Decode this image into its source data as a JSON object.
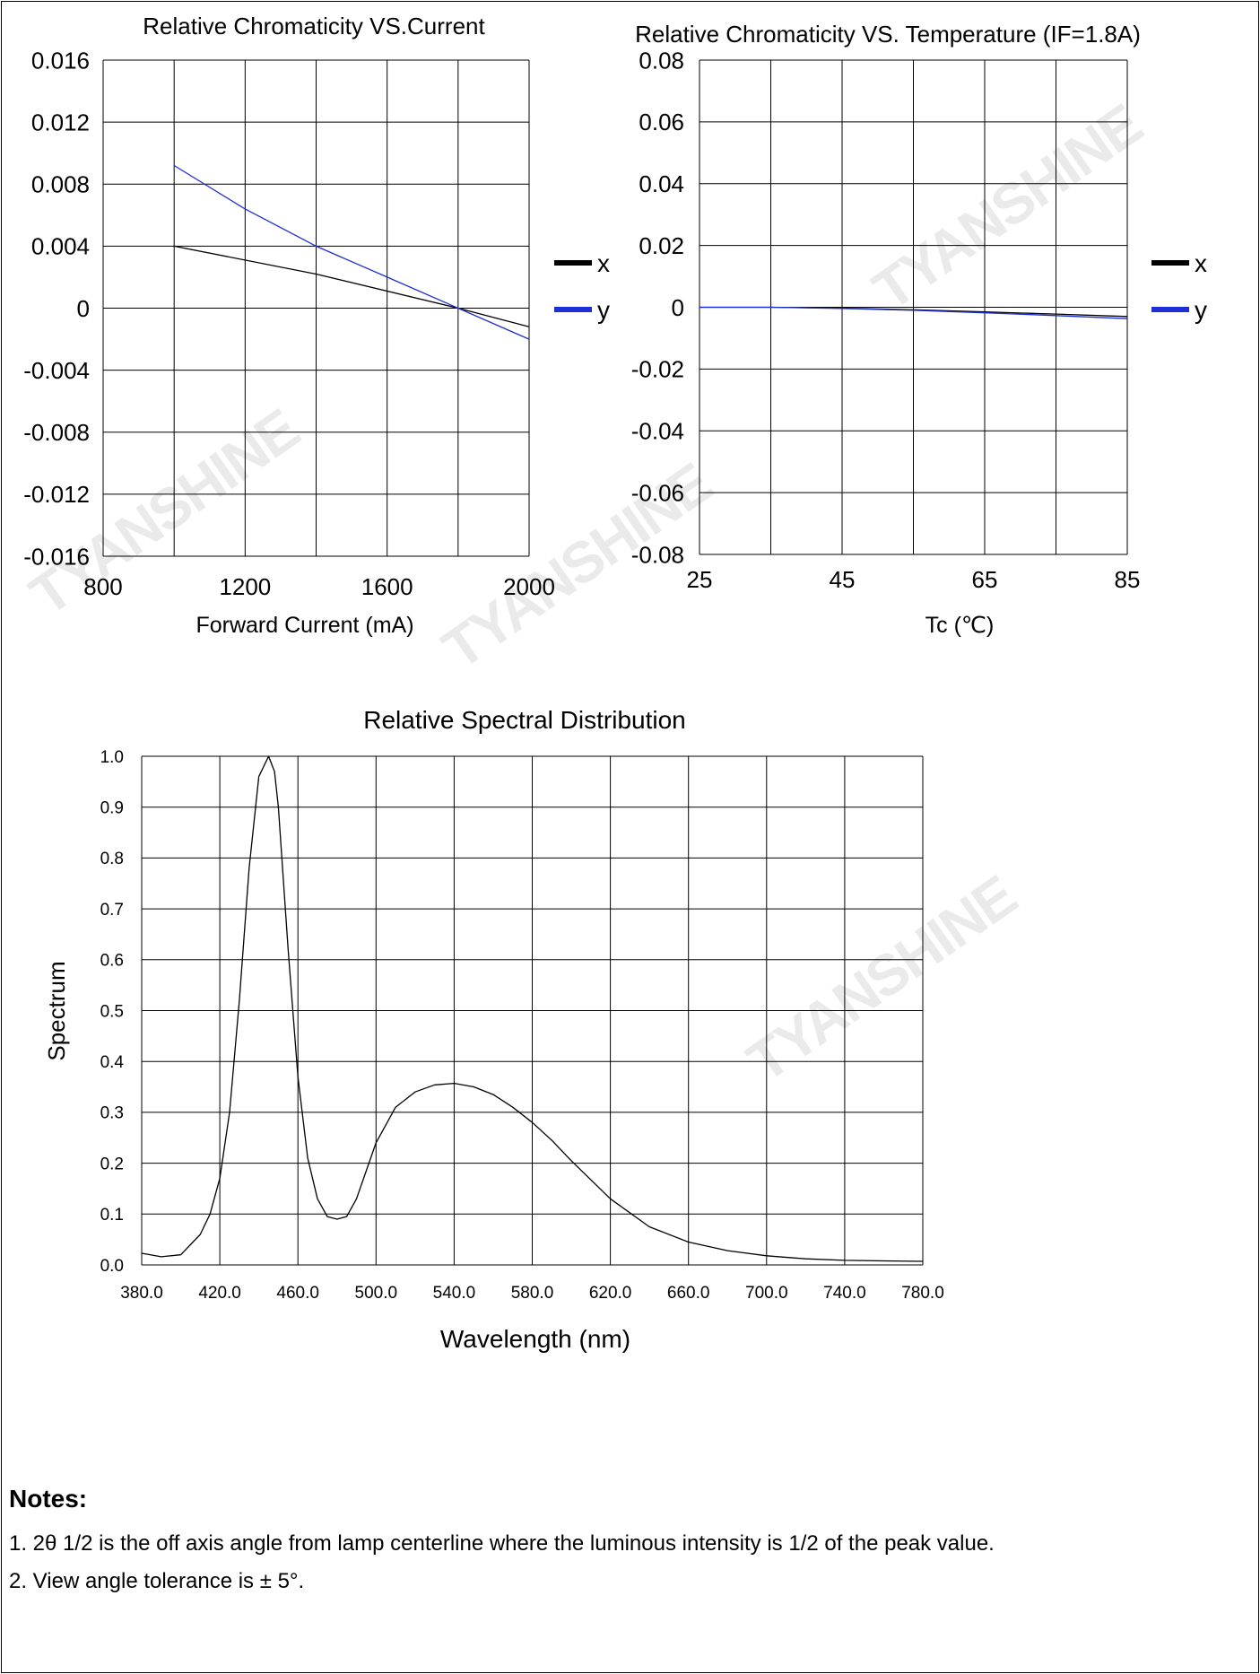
{
  "watermark": "TYANSHINE",
  "chart_data": [
    {
      "type": "line",
      "title": "Relative Chromaticity VS.Current",
      "xlabel": "Forward Current (mA)",
      "ylabel": "",
      "xlim": [
        800,
        2000
      ],
      "ylim": [
        -0.016,
        0.016
      ],
      "x_ticks": [
        "800",
        "1200",
        "1600",
        "2000"
      ],
      "y_ticks": [
        "0.016",
        "0.012",
        "0.008",
        "0.004",
        "0",
        "-0.004",
        "-0.008",
        "-0.012",
        "-0.016"
      ],
      "grid": true,
      "legend_position": "right",
      "series": [
        {
          "name": "x",
          "color": "#000000",
          "x": [
            1000,
            1400,
            1800,
            2000
          ],
          "y": [
            0.004,
            0.0022,
            0.0,
            -0.0012
          ]
        },
        {
          "name": "y",
          "color": "#1f2fd6",
          "x": [
            1000,
            1200,
            1400,
            1600,
            1800,
            2000
          ],
          "y": [
            0.0092,
            0.0064,
            0.004,
            0.002,
            0.0,
            -0.002
          ]
        }
      ]
    },
    {
      "type": "line",
      "title": "Relative Chromaticity VS. Temperature (IF=1.8A)",
      "xlabel": "Tc (℃)",
      "ylabel": "",
      "xlim": [
        25,
        85
      ],
      "ylim": [
        -0.08,
        0.08
      ],
      "x_ticks": [
        "25",
        "45",
        "65",
        "85"
      ],
      "y_ticks": [
        "0.08",
        "0.06",
        "0.04",
        "0.02",
        "0",
        "-0.02",
        "-0.04",
        "-0.06",
        "-0.08"
      ],
      "grid": true,
      "legend_position": "right",
      "series": [
        {
          "name": "x",
          "color": "#000000",
          "x": [
            25,
            35,
            45,
            55,
            65,
            75,
            85
          ],
          "y": [
            0.0,
            0.0,
            -0.0003,
            -0.0008,
            -0.0015,
            -0.0022,
            -0.003
          ]
        },
        {
          "name": "y",
          "color": "#1f2fd6",
          "x": [
            25,
            35,
            45,
            55,
            65,
            75,
            85
          ],
          "y": [
            0.0,
            0.0,
            -0.0004,
            -0.001,
            -0.0018,
            -0.0027,
            -0.0037
          ]
        }
      ]
    },
    {
      "type": "line",
      "title": "Relative Spectral Distribution",
      "xlabel": "Wavelength (nm)",
      "ylabel": "Spectrum",
      "xlim": [
        380,
        780
      ],
      "ylim": [
        0,
        1.0
      ],
      "x_ticks": [
        "380.0",
        "420.0",
        "460.0",
        "500.0",
        "540.0",
        "580.0",
        "620.0",
        "660.0",
        "700.0",
        "740.0",
        "780.0"
      ],
      "y_ticks": [
        "1.0",
        "0.9",
        "0.8",
        "0.7",
        "0.6",
        "0.5",
        "0.4",
        "0.3",
        "0.2",
        "0.1",
        "0.0"
      ],
      "grid": true,
      "series": [
        {
          "name": "",
          "color": "#000000",
          "x": [
            380,
            390,
            400,
            410,
            415,
            420,
            425,
            430,
            435,
            440,
            445,
            448,
            450,
            455,
            460,
            465,
            470,
            475,
            480,
            485,
            490,
            500,
            510,
            520,
            530,
            540,
            550,
            560,
            570,
            580,
            590,
            600,
            620,
            640,
            660,
            680,
            700,
            720,
            740,
            760,
            780
          ],
          "y": [
            0.023,
            0.016,
            0.02,
            0.06,
            0.1,
            0.17,
            0.3,
            0.52,
            0.78,
            0.96,
            1.0,
            0.97,
            0.9,
            0.62,
            0.37,
            0.21,
            0.13,
            0.095,
            0.09,
            0.095,
            0.13,
            0.24,
            0.31,
            0.34,
            0.354,
            0.357,
            0.35,
            0.335,
            0.31,
            0.28,
            0.245,
            0.205,
            0.13,
            0.075,
            0.045,
            0.028,
            0.018,
            0.012,
            0.009,
            0.008,
            0.007
          ]
        }
      ]
    }
  ],
  "notes": {
    "title": "Notes:",
    "lines": [
      "1. 2θ 1/2   is the off axis angle from lamp centerline where the luminous intensity is 1/2 of the peak value.",
      "2. View angle tolerance is ± 5°."
    ]
  }
}
